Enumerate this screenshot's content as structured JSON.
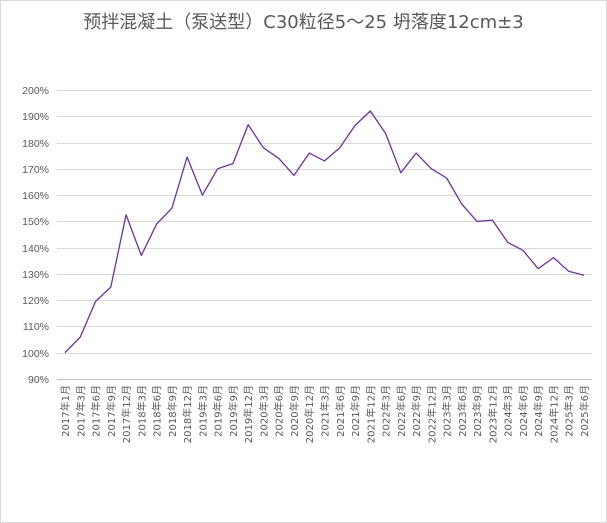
{
  "chart_data": {
    "type": "line",
    "title": "预拌混凝土（泵送型）C30粒径5～25 坍落度12cm±3",
    "xlabel": "",
    "ylabel": "",
    "ylim": [
      0.9,
      2.0
    ],
    "y_ticks": [
      "90%",
      "100%",
      "110%",
      "120%",
      "130%",
      "140%",
      "150%",
      "160%",
      "170%",
      "180%",
      "190%",
      "200%"
    ],
    "grid": true,
    "legend": "none",
    "line_color": "#7030a0",
    "categories": [
      "2017年1月",
      "2017年3月",
      "2017年6月",
      "2017年9月",
      "2017年12月",
      "2018年3月",
      "2018年6月",
      "2018年9月",
      "2018年12月",
      "2019年3月",
      "2019年6月",
      "2019年9月",
      "2019年12月",
      "2020年3月",
      "2020年6月",
      "2020年9月",
      "2020年12月",
      "2021年3月",
      "2021年6月",
      "2021年9月",
      "2021年12月",
      "2022年3月",
      "2022年6月",
      "2022年9月",
      "2022年12月",
      "2023年3月",
      "2023年6月",
      "2023年9月",
      "2023年12月",
      "2024年3月",
      "2024年6月",
      "2024年9月",
      "2024年12月",
      "2025年3月",
      "2025年6月"
    ],
    "series": [
      {
        "values": [
          1.0,
          1.06,
          1.195,
          1.25,
          1.525,
          1.37,
          1.49,
          1.55,
          1.745,
          1.6,
          1.7,
          1.72,
          1.868,
          1.78,
          1.74,
          1.675,
          1.76,
          1.73,
          1.78,
          1.865,
          1.92,
          1.835,
          1.685,
          1.76,
          1.7,
          1.665,
          1.565,
          1.5,
          1.505,
          1.42,
          1.39,
          1.32,
          1.362,
          1.31,
          1.295
        ]
      }
    ]
  }
}
